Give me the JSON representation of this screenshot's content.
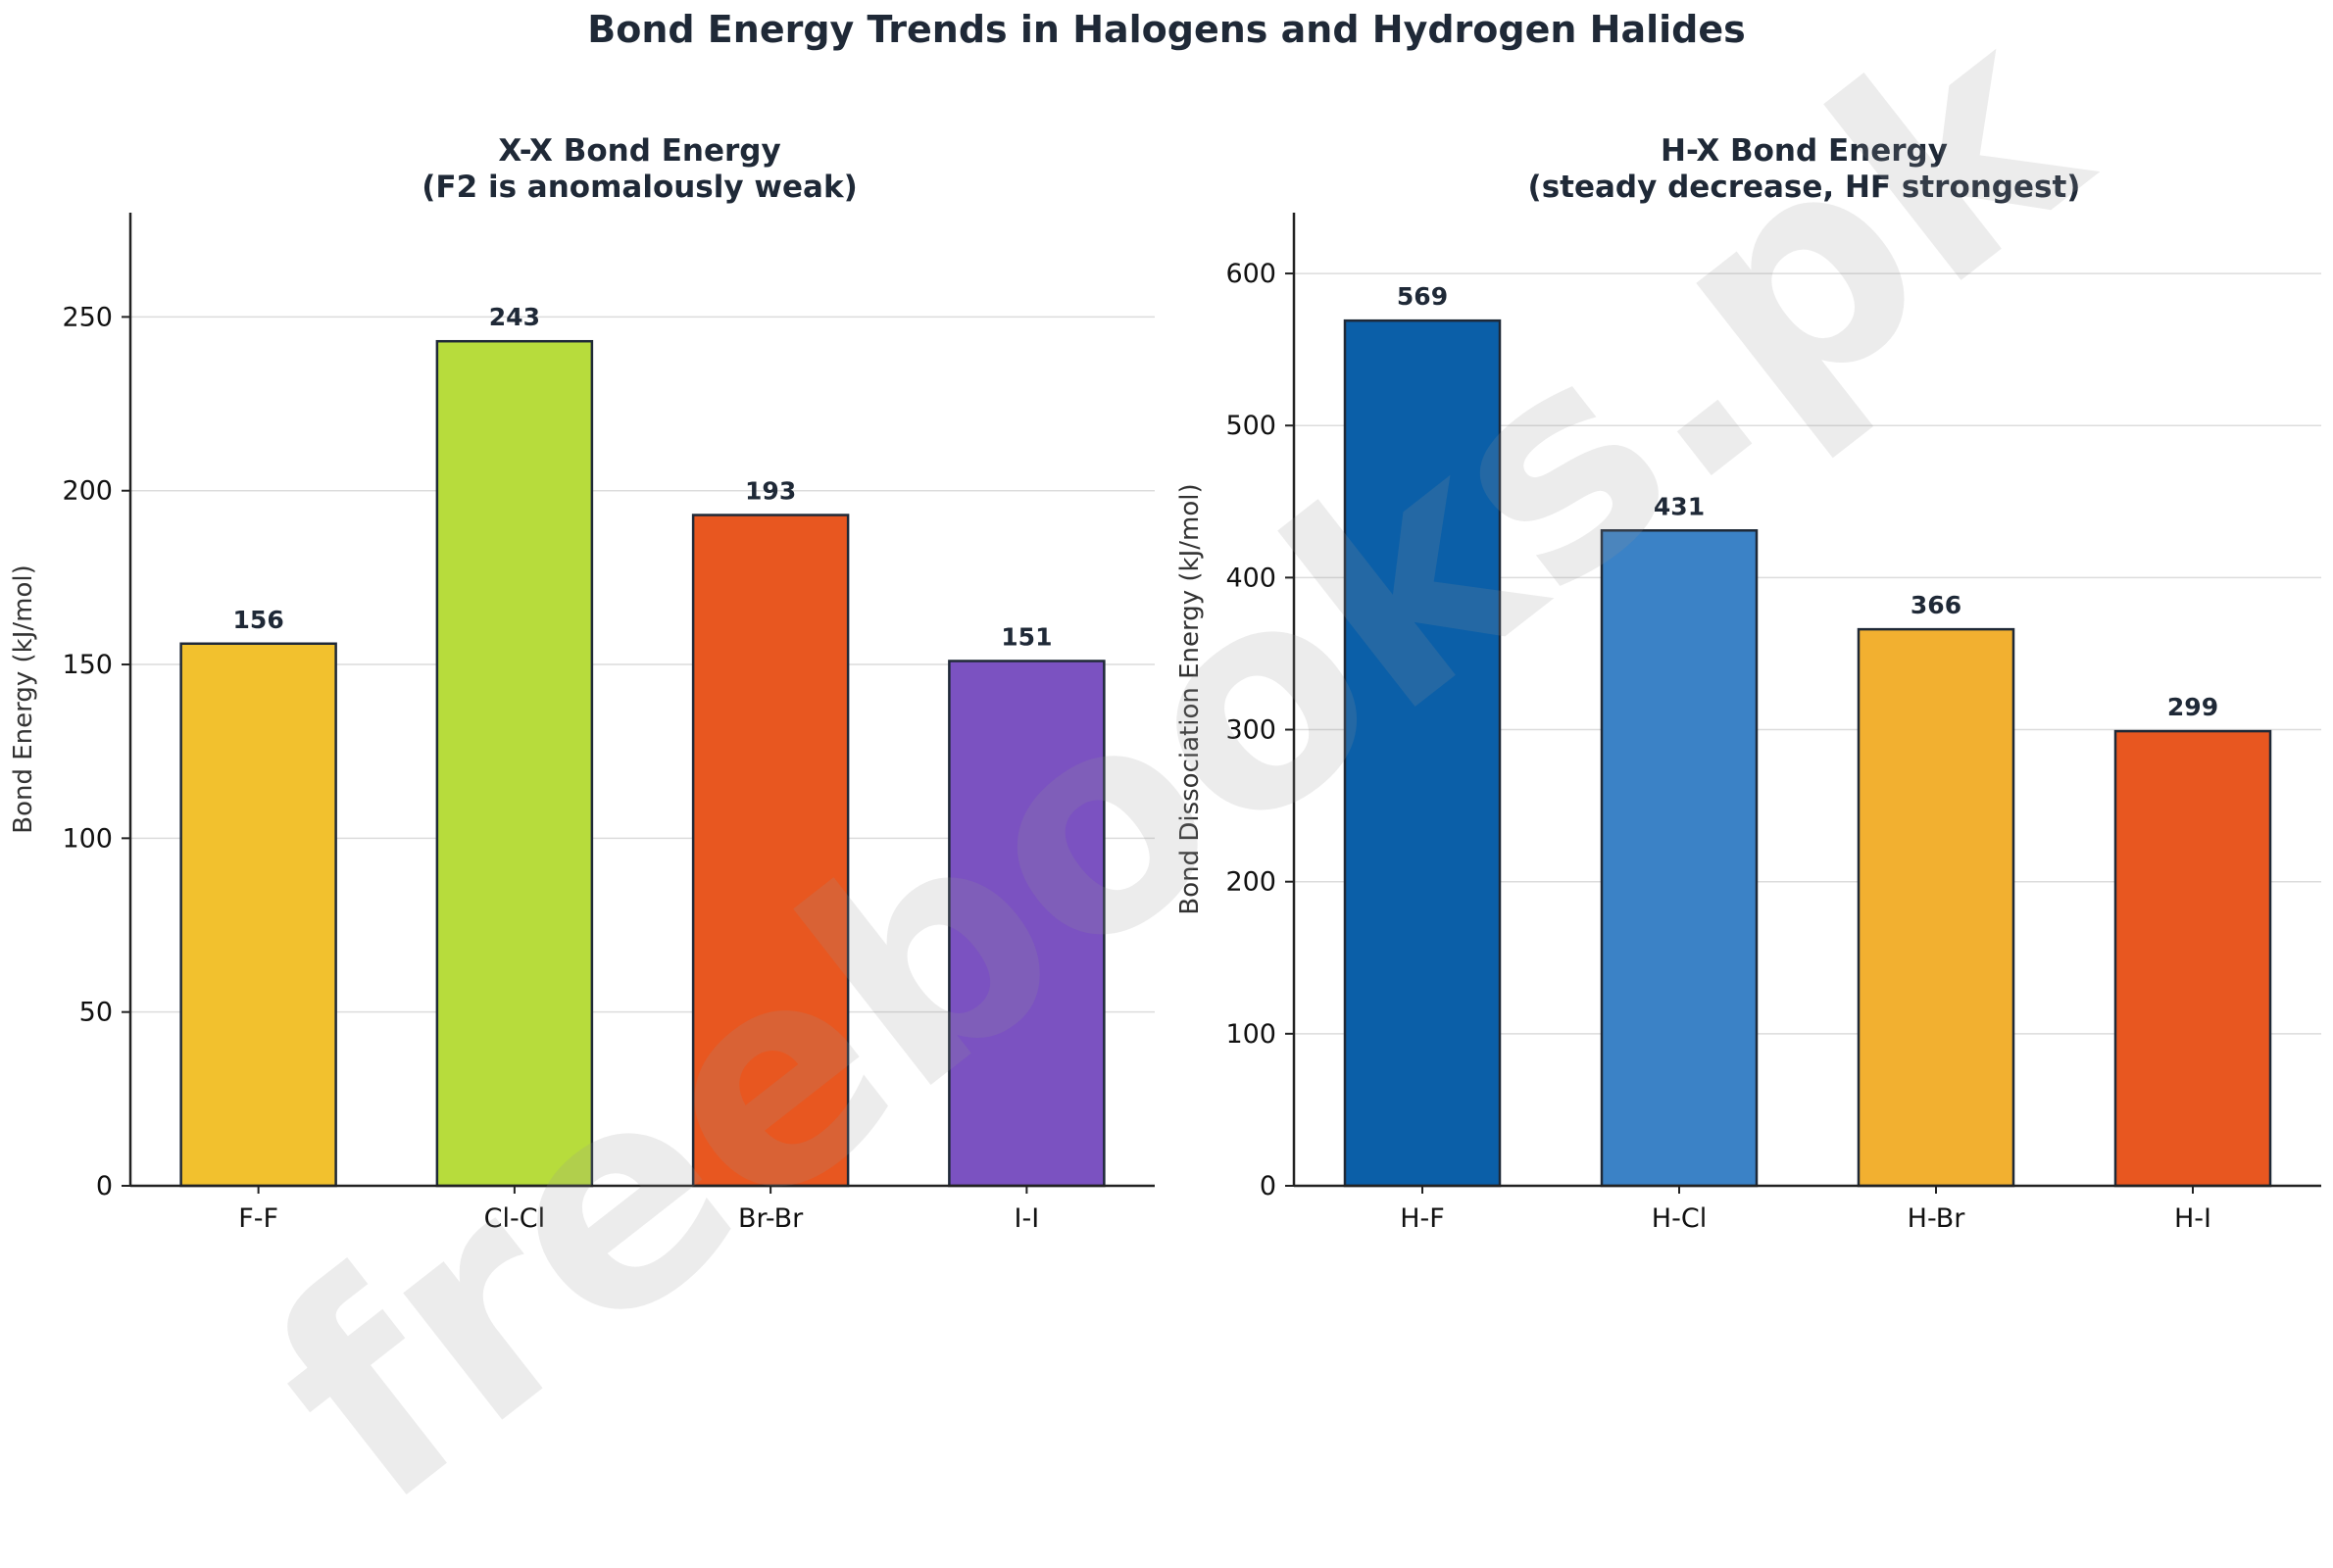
{
  "suptitle": "Bond Energy Trends in Halogens and Hydrogen Halides",
  "watermark": "freebooks.pk",
  "chart_data": [
    {
      "type": "bar",
      "title_line1": "X-X Bond Energy",
      "title_line2": "(F2 is anomalously weak)",
      "xlabel": "",
      "ylabel": "Bond Energy (kJ/mol)",
      "categories": [
        "F-F",
        "Cl-Cl",
        "Br-Br",
        "I-I"
      ],
      "values": [
        156,
        243,
        193,
        151
      ],
      "colors": [
        "#f2c12e",
        "#b7dc3c",
        "#e85720",
        "#7b52c1"
      ],
      "ylim": [
        0,
        280
      ],
      "yticks": [
        0,
        50,
        100,
        150,
        200,
        250
      ],
      "grid": "y",
      "data_labels": true
    },
    {
      "type": "bar",
      "title_line1": "H-X Bond Energy",
      "title_line2": "(steady decrease, HF strongest)",
      "xlabel": "",
      "ylabel": "Bond Dissociation Energy (kJ/mol)",
      "categories": [
        "H-F",
        "H-Cl",
        "H-Br",
        "H-I"
      ],
      "values": [
        569,
        431,
        366,
        299
      ],
      "colors": [
        "#0b5fa8",
        "#3b82c6",
        "#f2b030",
        "#e85720"
      ],
      "ylim": [
        0,
        640
      ],
      "yticks": [
        0,
        100,
        200,
        300,
        400,
        500,
        600
      ],
      "grid": "y",
      "data_labels": true
    }
  ]
}
